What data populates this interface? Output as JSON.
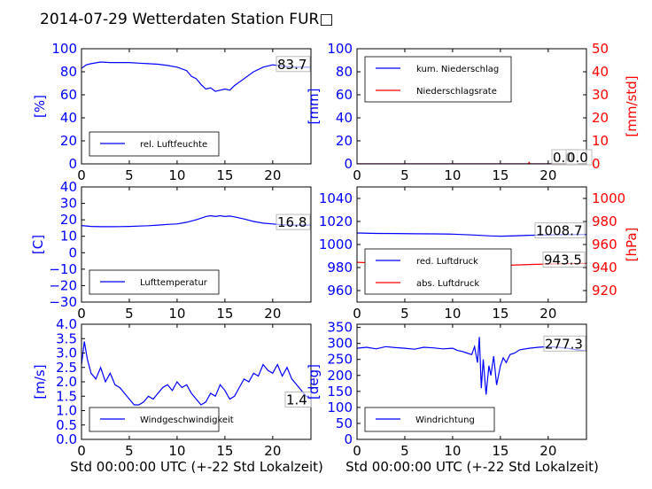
{
  "title": "2014-07-29 Wetterdaten Station FUR□",
  "colors": {
    "primary": "#0000ff",
    "secondary": "#ff0000",
    "axis": "#000000"
  },
  "xlabel": "Std 00:00:00 UTC (+-22 Std Lokalzeit)",
  "chart_data": [
    {
      "id": "humidity",
      "type": "line",
      "ylabel": "[%]",
      "ylim": [
        0,
        100
      ],
      "yticks": [
        "0",
        "20",
        "40",
        "60",
        "80",
        "100"
      ],
      "xlim": [
        0,
        24
      ],
      "xticks": [
        "0",
        "5",
        "10",
        "15",
        "20"
      ],
      "annotation": "83.7",
      "legend_position": "lower-left",
      "series": [
        {
          "name": "rel. Luftfeuchte",
          "color": "#0000ff",
          "x": [
            0,
            0.5,
            1,
            2,
            3,
            4,
            5,
            6,
            7,
            8,
            9,
            10,
            11,
            11.5,
            12,
            12.5,
            13,
            13.5,
            14,
            14.5,
            15,
            15.5,
            16,
            17,
            18,
            19,
            20,
            21,
            22,
            23,
            24
          ],
          "values": [
            83,
            86,
            87,
            88.5,
            88,
            88,
            88,
            87.5,
            87,
            86.5,
            85.5,
            84,
            81,
            76,
            74,
            69,
            65,
            66,
            63,
            64,
            65,
            64,
            68,
            74,
            80,
            84,
            86,
            85,
            84,
            84,
            84
          ]
        }
      ]
    },
    {
      "id": "precipitation",
      "type": "line",
      "ylabel": "[mm]",
      "ylim": [
        0,
        100
      ],
      "yticks": [
        "0",
        "20",
        "40",
        "60",
        "80",
        "100"
      ],
      "ylabel_right": "[mm/std]",
      "ylim_right": [
        0,
        50
      ],
      "yticks_right": [
        "0",
        "10",
        "20",
        "30",
        "40",
        "50"
      ],
      "xlim": [
        0,
        24
      ],
      "xticks": [
        "0",
        "5",
        "10",
        "15",
        "20"
      ],
      "annotation": "0.0",
      "annotation2": "0.0",
      "legend_position": "upper-left",
      "series": [
        {
          "name": "kum. Niederschlag",
          "color": "#0000ff",
          "x": [
            0,
            24
          ],
          "values": [
            0,
            0
          ]
        },
        {
          "name": "Niederschlagsrate",
          "color": "#ff0000",
          "axis": "right",
          "x": [
            0,
            17.9,
            18,
            18.1,
            24
          ],
          "values": [
            0,
            0,
            0.6,
            0,
            0
          ]
        }
      ]
    },
    {
      "id": "temperature",
      "type": "line",
      "ylabel": "[C]",
      "ylim": [
        -30,
        40
      ],
      "yticks": [
        "−30",
        "−20",
        "−10",
        "0",
        "10",
        "20",
        "30",
        "40"
      ],
      "xlim": [
        0,
        24
      ],
      "xticks": [
        "0",
        "5",
        "10",
        "15",
        "20"
      ],
      "annotation": "16.8",
      "legend_position": "lower-left",
      "series": [
        {
          "name": "Lufttemperatur",
          "color": "#0000ff",
          "x": [
            0,
            1,
            2,
            3,
            4,
            5,
            6,
            7,
            8,
            9,
            10,
            11,
            12,
            12.5,
            13,
            13.5,
            14,
            14.5,
            15,
            15.5,
            16,
            17,
            18,
            19,
            20,
            21,
            22,
            23,
            24
          ],
          "values": [
            16.5,
            16,
            15.8,
            15.8,
            15.9,
            16,
            16.2,
            16.4,
            16.8,
            17.2,
            17.5,
            18.5,
            20,
            21,
            22,
            22.5,
            22,
            22.5,
            22,
            22.3,
            21.8,
            20.5,
            19,
            18,
            17.5,
            17,
            16.8,
            16.8,
            16.8
          ]
        }
      ]
    },
    {
      "id": "pressure",
      "type": "line",
      "ylim": [
        950,
        1050
      ],
      "yticks": [
        "960",
        "980",
        "1000",
        "1020",
        "1040"
      ],
      "ylabel_right": "[hPa]",
      "ylim_right": [
        910,
        1010
      ],
      "yticks_right": [
        "920",
        "940",
        "960",
        "980",
        "1000"
      ],
      "xlim": [
        0,
        24
      ],
      "xticks": [
        "0",
        "5",
        "10",
        "15",
        "20"
      ],
      "annotation": "1008.7",
      "annotation2": "943.5",
      "legend_position": "lower-left",
      "series": [
        {
          "name": "red. Luftdruck",
          "color": "#0000ff",
          "x": [
            0,
            2,
            4,
            6,
            8,
            10,
            12,
            14,
            15,
            16,
            18,
            20,
            22,
            24
          ],
          "values": [
            1010,
            1009.6,
            1009.5,
            1009.3,
            1009.2,
            1009,
            1008.3,
            1007.5,
            1007.2,
            1007.4,
            1008,
            1008.4,
            1008.6,
            1008.7
          ]
        },
        {
          "name": "abs. Luftdruck",
          "color": "#ff0000",
          "axis": "right",
          "x": [
            0,
            2,
            4,
            6,
            8,
            10,
            12,
            14,
            15,
            16,
            18,
            20,
            22,
            24
          ],
          "values": [
            944.5,
            944,
            943.8,
            943.6,
            943.4,
            943.2,
            942.6,
            942,
            941.8,
            942,
            942.6,
            943.1,
            943.4,
            943.5
          ]
        }
      ]
    },
    {
      "id": "windspeed",
      "type": "line",
      "ylabel": "[m/s]",
      "ylim": [
        0,
        4
      ],
      "yticks": [
        "0.0",
        "0.5",
        "1.0",
        "1.5",
        "2.0",
        "2.5",
        "3.0",
        "3.5",
        "4.0"
      ],
      "xlim": [
        0,
        24
      ],
      "xticks": [
        "0",
        "5",
        "10",
        "15",
        "20"
      ],
      "annotation": "1.4",
      "legend_position": "lower-left",
      "series": [
        {
          "name": "Windgeschwindigkeit",
          "color": "#0000ff",
          "x": [
            0,
            0.3,
            0.6,
            1,
            1.5,
            2,
            2.5,
            3,
            3.5,
            4,
            4.5,
            5,
            5.5,
            6,
            6.5,
            7,
            7.5,
            8,
            8.5,
            9,
            9.5,
            10,
            10.5,
            11,
            11.5,
            12,
            12.5,
            13,
            13.5,
            14,
            14.5,
            15,
            15.5,
            16,
            16.5,
            17,
            17.5,
            18,
            18.5,
            19,
            19.5,
            20,
            20.5,
            21,
            21.5,
            22,
            22.5,
            23,
            23.5,
            24
          ],
          "values": [
            2.6,
            3.4,
            2.8,
            2.3,
            2.1,
            2.5,
            2.0,
            2.3,
            1.9,
            1.8,
            1.6,
            1.4,
            1.2,
            1.2,
            1.3,
            1.5,
            1.4,
            1.6,
            1.8,
            1.9,
            1.7,
            2.0,
            1.8,
            1.9,
            1.6,
            1.4,
            1.2,
            1.3,
            1.6,
            1.5,
            1.9,
            1.7,
            1.4,
            1.5,
            1.8,
            2.1,
            2.0,
            2.3,
            2.2,
            2.6,
            2.4,
            2.3,
            2.6,
            2.2,
            2.5,
            2.1,
            1.9,
            1.7,
            1.5,
            1.4
          ]
        }
      ]
    },
    {
      "id": "winddirection",
      "type": "line",
      "ylabel": "[deg]",
      "ylim": [
        0,
        360
      ],
      "yticks": [
        "0",
        "50",
        "100",
        "150",
        "200",
        "250",
        "300",
        "350"
      ],
      "xlim": [
        0,
        24
      ],
      "xticks": [
        "0",
        "5",
        "10",
        "15",
        "20"
      ],
      "annotation": "277.3",
      "legend_position": "lower-left",
      "series": [
        {
          "name": "Windrichtung",
          "color": "#0000ff",
          "x": [
            0,
            1,
            2,
            3,
            4,
            5,
            6,
            7,
            8,
            9,
            10,
            10.5,
            11,
            11.5,
            12,
            12.3,
            12.6,
            12.8,
            13,
            13.2,
            13.5,
            13.8,
            14,
            14.3,
            14.6,
            15,
            15.3,
            15.6,
            16,
            16.5,
            17,
            18,
            19,
            20,
            21,
            22,
            23,
            24
          ],
          "values": [
            285,
            288,
            283,
            290,
            287,
            285,
            282,
            288,
            286,
            283,
            285,
            278,
            275,
            270,
            265,
            290,
            240,
            320,
            160,
            250,
            140,
            230,
            200,
            260,
            170,
            230,
            255,
            240,
            265,
            270,
            280,
            285,
            288,
            290,
            288,
            285,
            280,
            277
          ]
        }
      ]
    }
  ]
}
